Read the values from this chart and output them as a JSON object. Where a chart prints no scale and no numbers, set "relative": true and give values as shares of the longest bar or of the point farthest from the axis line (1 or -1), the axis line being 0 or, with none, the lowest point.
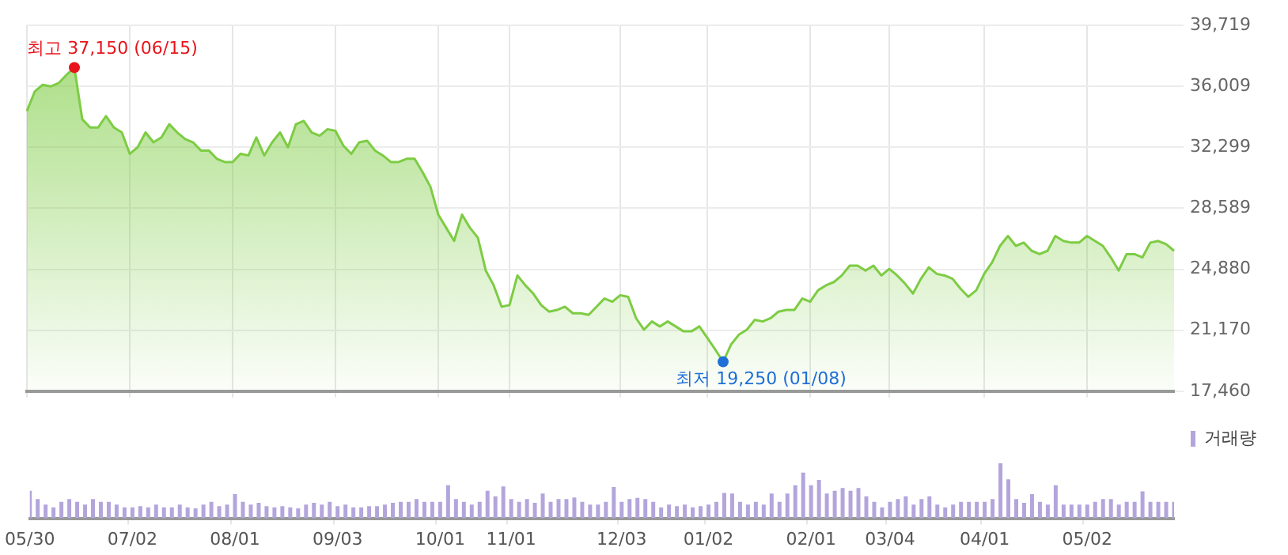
{
  "chart_data": [
    {
      "type": "area",
      "color": "#7dcc43",
      "grid": true,
      "tick_labels": "y",
      "categories": [
        "05/30",
        null,
        null,
        null,
        null,
        null,
        null,
        null,
        null,
        null,
        null,
        null,
        null,
        "07/02",
        null,
        null,
        null,
        null,
        null,
        null,
        null,
        null,
        null,
        null,
        null,
        null,
        "08/01",
        null,
        null,
        null,
        null,
        null,
        null,
        null,
        null,
        null,
        null,
        null,
        null,
        "09/03",
        null,
        null,
        null,
        null,
        null,
        null,
        null,
        null,
        null,
        null,
        null,
        null,
        "10/01",
        null,
        null,
        null,
        null,
        null,
        null,
        null,
        null,
        "11/01",
        null,
        null,
        null,
        null,
        null,
        null,
        null,
        null,
        null,
        null,
        null,
        null,
        null,
        "12/03",
        null,
        null,
        null,
        null,
        null,
        null,
        null,
        null,
        null,
        null,
        "01/02",
        null,
        null,
        null,
        null,
        null,
        null,
        null,
        null,
        null,
        null,
        null,
        null,
        "02/01",
        null,
        null,
        null,
        null,
        null,
        null,
        null,
        null,
        null,
        "03/04",
        null,
        null,
        null,
        null,
        null,
        null,
        null,
        null,
        null,
        null,
        null,
        "04/01",
        null,
        null,
        null,
        null,
        null,
        null,
        null,
        null,
        null,
        null,
        null,
        null,
        "05/02",
        null,
        null,
        null,
        null,
        null,
        null,
        null,
        null,
        null,
        null,
        null
      ],
      "values": [
        34500,
        35700,
        36100,
        36000,
        36200,
        36700,
        37150,
        34000,
        33500,
        33500,
        34200,
        33500,
        33200,
        31900,
        32300,
        33200,
        32600,
        32900,
        33700,
        33200,
        32800,
        32600,
        32100,
        32100,
        31600,
        31400,
        31400,
        31900,
        31800,
        32900,
        31800,
        32600,
        33200,
        32300,
        33700,
        33900,
        33200,
        33000,
        33400,
        33300,
        32400,
        31900,
        32600,
        32700,
        32100,
        31800,
        31400,
        31400,
        31600,
        31600,
        30800,
        29900,
        28200,
        27400,
        26600,
        28200,
        27400,
        26800,
        24800,
        23900,
        22600,
        22700,
        24500,
        23900,
        23400,
        22700,
        22300,
        22400,
        22600,
        22200,
        22200,
        22100,
        22600,
        23100,
        22900,
        23300,
        23200,
        21900,
        21200,
        21700,
        21400,
        21700,
        21400,
        21100,
        21100,
        21400,
        20700,
        20000,
        19250,
        20300,
        20900,
        21200,
        21800,
        21700,
        21900,
        22300,
        22400,
        22400,
        23100,
        22900,
        23600,
        23900,
        24100,
        24500,
        25100,
        25100,
        24800,
        25100,
        24500,
        24900,
        24500,
        24000,
        23400,
        24300,
        25000,
        24600,
        24500,
        24300,
        23700,
        23200,
        23600,
        24600,
        25300,
        26300,
        26900,
        26300,
        26500,
        26000,
        25800,
        26000,
        26900,
        26600,
        26500,
        26500,
        26900,
        26600,
        26300,
        25600,
        24800,
        25800,
        25800,
        25600,
        26500,
        26600,
        26400,
        26000
      ],
      "ylim": [
        17460,
        39719
      ],
      "yticks": [
        {
          "value": 17460,
          "label": "17,460"
        },
        {
          "value": 21170,
          "label": "21,170"
        },
        {
          "value": 24880,
          "label": "24,880"
        },
        {
          "value": 28589,
          "label": "28,589"
        },
        {
          "value": 32299,
          "label": "32,299"
        },
        {
          "value": 36009,
          "label": "36,009"
        },
        {
          "value": 39719,
          "label": "39,719"
        }
      ],
      "annotations": [
        "최고 37,150 (06/15)",
        "최저 19,250 (01/08)"
      ]
    },
    {
      "type": "bar",
      "relative": true,
      "legend": "top right",
      "tick_labels": "x",
      "series": [
        {
          "name": "거래량",
          "color": "#b3a5dc",
          "values": [
            0.5,
            0.35,
            0.25,
            0.2,
            0.3,
            0.35,
            0.3,
            0.25,
            0.35,
            0.3,
            0.3,
            0.25,
            0.2,
            0.2,
            0.22,
            0.2,
            0.25,
            0.2,
            0.2,
            0.25,
            0.2,
            0.18,
            0.25,
            0.3,
            0.22,
            0.25,
            0.44,
            0.3,
            0.25,
            0.28,
            0.22,
            0.2,
            0.22,
            0.2,
            0.18,
            0.25,
            0.28,
            0.25,
            0.3,
            0.22,
            0.25,
            0.2,
            0.2,
            0.22,
            0.22,
            0.25,
            0.28,
            0.3,
            0.3,
            0.35,
            0.3,
            0.3,
            0.3,
            0.6,
            0.35,
            0.3,
            0.25,
            0.3,
            0.5,
            0.4,
            0.58,
            0.35,
            0.3,
            0.35,
            0.28,
            0.45,
            0.3,
            0.35,
            0.35,
            0.38,
            0.3,
            0.25,
            0.25,
            0.3,
            0.57,
            0.3,
            0.35,
            0.37,
            0.35,
            0.3,
            0.2,
            0.25,
            0.22,
            0.25,
            0.2,
            0.22,
            0.25,
            0.3,
            0.46,
            0.45,
            0.3,
            0.25,
            0.3,
            0.25,
            0.45,
            0.3,
            0.45,
            0.6,
            0.83,
            0.6,
            0.7,
            0.45,
            0.5,
            0.55,
            0.5,
            0.55,
            0.4,
            0.3,
            0.2,
            0.3,
            0.35,
            0.4,
            0.25,
            0.35,
            0.4,
            0.25,
            0.2,
            0.25,
            0.3,
            0.3,
            0.3,
            0.3,
            0.35,
            1,
            0.71,
            0.35,
            0.28,
            0.44,
            0.3,
            0.25,
            0.6,
            0.25,
            0.25,
            0.25,
            0.25,
            0.3,
            0.35,
            0.35,
            0.25,
            0.3,
            0.3,
            0.49,
            0.3,
            0.3,
            0.3,
            0.3
          ]
        }
      ]
    }
  ]
}
